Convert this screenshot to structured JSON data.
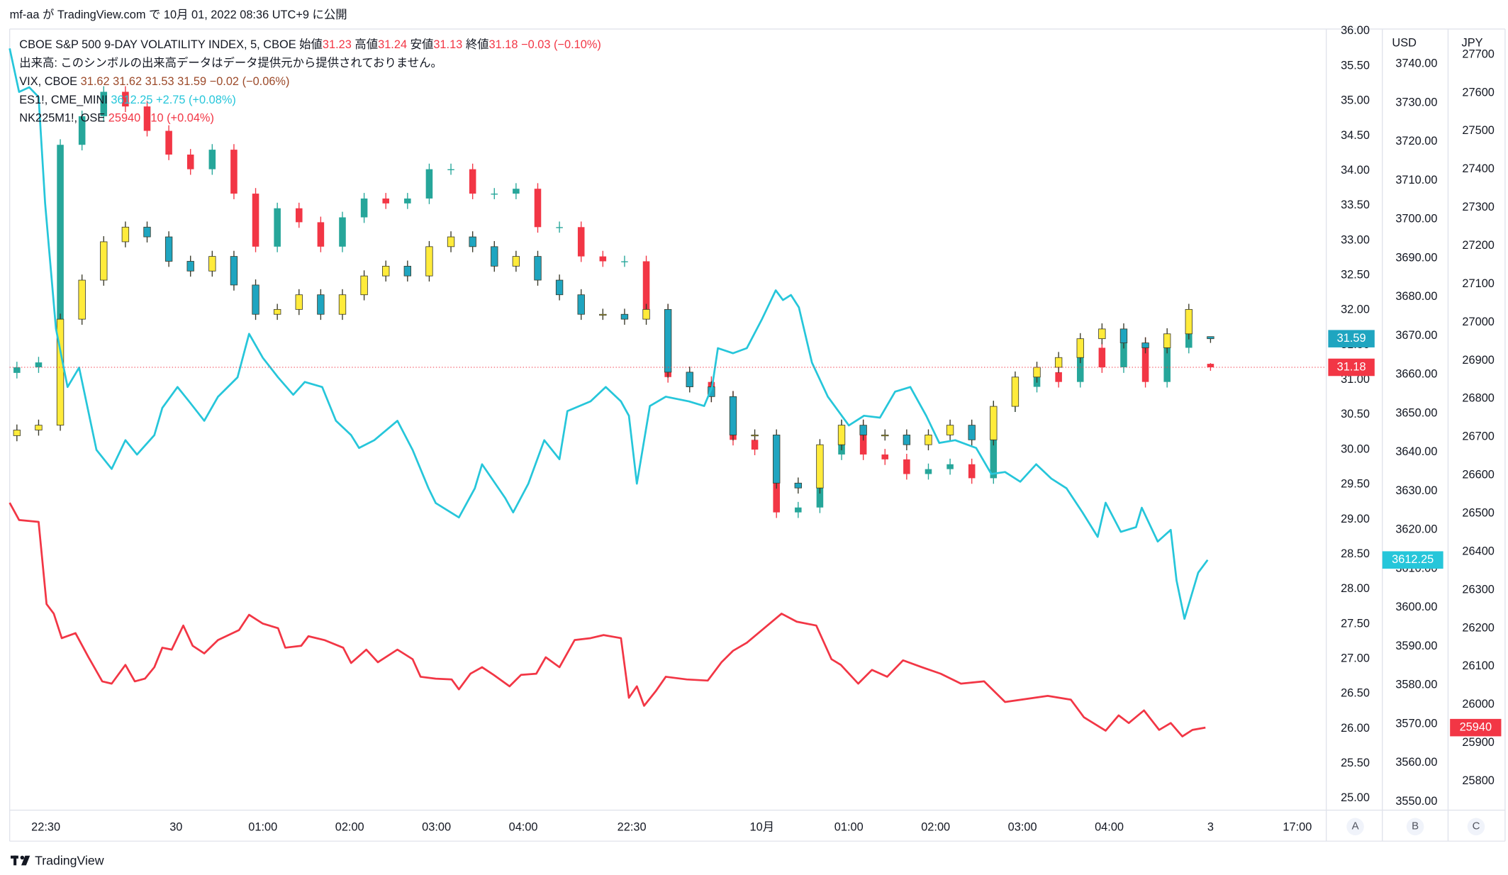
{
  "page_header": "mf-aa が TradingView.com で 10月 01, 2022 08:36 UTC+9 に公開",
  "footer": "TradingView",
  "chart_data": {
    "type": "candlestick",
    "volume_note": "出来高: このシンボルの出来高データはデータ提供元から提供されておりません。",
    "ohlc_labels": [
      "始値",
      "高値",
      "安値",
      "終値"
    ],
    "scale_buttons": [
      "A",
      "B",
      "C"
    ],
    "y2label": "USD",
    "y3label": "JPY",
    "grid": false,
    "xlim": [
      0,
      182
    ],
    "xticks": [
      {
        "value": 5,
        "label": "22:30"
      },
      {
        "value": 23,
        "label": "30"
      },
      {
        "value": 35,
        "label": "01:00"
      },
      {
        "value": 47,
        "label": "02:00"
      },
      {
        "value": 59,
        "label": "03:00"
      },
      {
        "value": 71,
        "label": "04:00"
      },
      {
        "value": 86,
        "label": "22:30"
      },
      {
        "value": 104,
        "label": "10月"
      },
      {
        "value": 116,
        "label": "01:00"
      },
      {
        "value": 128,
        "label": "02:00"
      },
      {
        "value": 140,
        "label": "03:00"
      },
      {
        "value": 152,
        "label": "04:00"
      },
      {
        "value": 166,
        "label": "3"
      },
      {
        "value": 178,
        "label": "17:00"
      }
    ],
    "ylim": [
      24.83,
      36.03
    ],
    "yticks": [
      {
        "value": 25,
        "label": "25.00"
      },
      {
        "value": 25.5,
        "label": "25.50"
      },
      {
        "value": 26,
        "label": "26.00"
      },
      {
        "value": 26.5,
        "label": "26.50"
      },
      {
        "value": 27,
        "label": "27.00"
      },
      {
        "value": 27.5,
        "label": "27.50"
      },
      {
        "value": 28,
        "label": "28.00"
      },
      {
        "value": 28.5,
        "label": "28.50"
      },
      {
        "value": 29,
        "label": "29.00"
      },
      {
        "value": 29.5,
        "label": "29.50"
      },
      {
        "value": 30,
        "label": "30.00"
      },
      {
        "value": 30.5,
        "label": "30.50"
      },
      {
        "value": 31,
        "label": "31.00"
      },
      {
        "value": 31.5,
        "label": "31.50"
      },
      {
        "value": 32,
        "label": "32.00"
      },
      {
        "value": 32.5,
        "label": "32.50"
      },
      {
        "value": 33,
        "label": "33.00"
      },
      {
        "value": 33.5,
        "label": "33.50"
      },
      {
        "value": 34,
        "label": "34.00"
      },
      {
        "value": 34.5,
        "label": "34.50"
      },
      {
        "value": 35,
        "label": "35.00"
      },
      {
        "value": 35.5,
        "label": "35.50"
      },
      {
        "value": 36,
        "label": "36.00"
      }
    ],
    "y2lim": [
      3547.8,
      3749
    ],
    "y2ticks": [
      {
        "value": 3550,
        "label": "3550.00"
      },
      {
        "value": 3560,
        "label": "3560.00"
      },
      {
        "value": 3570,
        "label": "3570.00"
      },
      {
        "value": 3580,
        "label": "3580.00"
      },
      {
        "value": 3590,
        "label": "3590.00"
      },
      {
        "value": 3600,
        "label": "3600.00"
      },
      {
        "value": 3610,
        "label": "3610.00"
      },
      {
        "value": 3620,
        "label": "3620.00"
      },
      {
        "value": 3630,
        "label": "3630.00"
      },
      {
        "value": 3640,
        "label": "3640.00"
      },
      {
        "value": 3650,
        "label": "3650.00"
      },
      {
        "value": 3660,
        "label": "3660.00"
      },
      {
        "value": 3670,
        "label": "3670.00"
      },
      {
        "value": 3680,
        "label": "3680.00"
      },
      {
        "value": 3690,
        "label": "3690.00"
      },
      {
        "value": 3700,
        "label": "3700.00"
      },
      {
        "value": 3710,
        "label": "3710.00"
      },
      {
        "value": 3720,
        "label": "3720.00"
      },
      {
        "value": 3730,
        "label": "3730.00"
      },
      {
        "value": 3740,
        "label": "3740.00"
      }
    ],
    "y3lim": [
      25724,
      27767
    ],
    "y3ticks": [
      25800,
      25900,
      26000,
      26100,
      26200,
      26300,
      26400,
      26500,
      26600,
      26700,
      26800,
      26900,
      27000,
      27100,
      27200,
      27300,
      27400,
      27500,
      27600,
      27700
    ],
    "x": [
      1,
      4,
      7,
      10,
      13,
      16,
      19,
      22,
      25,
      28,
      31,
      34,
      37,
      40,
      43,
      46,
      49,
      52,
      55,
      58,
      61,
      64,
      67,
      70,
      73,
      76,
      79,
      82,
      85,
      88,
      91,
      94,
      97,
      100,
      103,
      106,
      109,
      112,
      115,
      118,
      121,
      124,
      127,
      130,
      133,
      136,
      139,
      142,
      145,
      148,
      151,
      154,
      157,
      160,
      163,
      166
    ],
    "series": [
      {
        "name": "CBOE S&P 500 9-DAY VOLATILITY INDEX, 5, CBOE",
        "type": "candlestick",
        "up_color": "#26a69a",
        "down_color": "#f23645",
        "legend_color": "#f23645",
        "change": "−0.03 (−0.10%)",
        "open": [
          31.1,
          31.18,
          31.25,
          34.37,
          34.78,
          35.13,
          34.92,
          34.57,
          34.23,
          34.02,
          34.3,
          33.67,
          32.91,
          33.46,
          33.26,
          32.91,
          33.33,
          33.6,
          33.53,
          33.6,
          34.02,
          34.02,
          33.67,
          33.67,
          33.74,
          33.19,
          33.19,
          32.77,
          32.7,
          32.7,
          32.01,
          31.04,
          30.97,
          30.76,
          30.14,
          30.0,
          29.1,
          29.17,
          29.93,
          30.35,
          29.93,
          29.86,
          29.65,
          29.72,
          29.79,
          29.59,
          30.62,
          30.9,
          31.11,
          30.97,
          31.46,
          31.18,
          31.53,
          30.97,
          31.46,
          31.23
        ],
        "high": [
          31.26,
          31.33,
          34.45,
          34.86,
          35.21,
          35.21,
          35.0,
          34.65,
          34.31,
          34.38,
          34.38,
          33.75,
          33.54,
          33.54,
          33.34,
          33.41,
          33.68,
          33.68,
          33.68,
          34.1,
          34.1,
          34.1,
          33.75,
          33.82,
          33.82,
          33.27,
          33.27,
          32.85,
          32.78,
          32.78,
          32.09,
          31.12,
          31.05,
          30.84,
          30.22,
          30.08,
          29.25,
          30.01,
          30.43,
          30.43,
          30.01,
          29.94,
          29.8,
          29.87,
          29.87,
          30.7,
          30.98,
          31.19,
          31.19,
          31.54,
          31.54,
          31.61,
          31.61,
          31.54,
          31.88,
          31.24
        ],
        "low": [
          31.02,
          31.1,
          31.17,
          34.29,
          34.7,
          34.84,
          34.49,
          34.15,
          33.94,
          33.94,
          33.59,
          32.83,
          32.83,
          33.18,
          32.83,
          32.83,
          33.25,
          33.45,
          33.45,
          33.52,
          33.94,
          33.59,
          33.59,
          33.59,
          33.11,
          33.11,
          32.69,
          32.62,
          32.62,
          31.93,
          30.96,
          30.89,
          30.68,
          30.06,
          29.92,
          29.02,
          29.02,
          29.09,
          29.85,
          29.85,
          29.78,
          29.57,
          29.57,
          29.64,
          29.51,
          29.51,
          30.54,
          30.82,
          30.89,
          30.89,
          31.1,
          31.1,
          30.89,
          30.89,
          31.38,
          31.13
        ],
        "close": [
          31.18,
          31.25,
          34.37,
          34.78,
          35.13,
          34.92,
          34.57,
          34.23,
          34.02,
          34.3,
          33.67,
          32.91,
          33.46,
          33.26,
          32.91,
          33.33,
          33.6,
          33.53,
          33.6,
          34.02,
          34.02,
          33.67,
          33.67,
          33.74,
          33.19,
          33.19,
          32.77,
          32.7,
          32.7,
          32.01,
          31.04,
          30.97,
          30.76,
          30.14,
          30.0,
          29.1,
          29.17,
          29.93,
          30.35,
          29.93,
          29.86,
          29.65,
          29.72,
          29.79,
          29.59,
          30.62,
          30.9,
          31.11,
          30.97,
          31.46,
          31.18,
          31.53,
          30.97,
          31.46,
          31.8,
          31.18
        ]
      },
      {
        "name": "VIX, CBOE",
        "type": "candlestick",
        "up_color": "#ffeb3b",
        "down_color": "#1fa5c0",
        "border_color": "#3a3a2a",
        "legend_color": "#9c4a2a",
        "change": "−0.02 (−0.06%)",
        "open": [
          30.2,
          30.28,
          30.35,
          31.87,
          32.43,
          32.98,
          33.19,
          33.05,
          32.7,
          32.56,
          32.77,
          32.36,
          31.94,
          32.01,
          32.22,
          31.94,
          32.22,
          32.49,
          32.63,
          32.49,
          32.91,
          33.05,
          32.91,
          32.63,
          32.77,
          32.43,
          32.22,
          31.94,
          31.94,
          31.87,
          32.01,
          31.11,
          30.9,
          30.76,
          30.21,
          30.21,
          29.52,
          29.45,
          30.07,
          30.35,
          30.21,
          30.21,
          30.07,
          30.21,
          30.35,
          30.14,
          30.62,
          31.04,
          31.18,
          31.32,
          31.59,
          31.73,
          31.53,
          31.46,
          31.66,
          31.62
        ],
        "high": [
          30.36,
          30.43,
          31.95,
          32.51,
          33.06,
          33.27,
          33.27,
          33.13,
          32.78,
          32.85,
          32.85,
          32.44,
          32.09,
          32.3,
          32.3,
          32.3,
          32.57,
          32.71,
          32.71,
          32.99,
          33.13,
          33.13,
          32.99,
          32.85,
          32.85,
          32.51,
          32.3,
          32.02,
          32.02,
          32.09,
          32.09,
          31.19,
          30.98,
          30.84,
          30.29,
          30.29,
          29.6,
          30.15,
          30.43,
          30.43,
          30.29,
          30.29,
          30.29,
          30.43,
          30.43,
          30.7,
          31.12,
          31.26,
          31.4,
          31.67,
          31.81,
          31.81,
          31.61,
          31.74,
          32.09,
          31.62
        ],
        "low": [
          30.12,
          30.2,
          30.27,
          31.79,
          32.35,
          32.9,
          32.97,
          32.62,
          32.48,
          32.48,
          32.28,
          31.86,
          31.86,
          31.93,
          31.86,
          31.86,
          32.14,
          32.41,
          32.41,
          32.41,
          32.83,
          32.83,
          32.55,
          32.55,
          32.35,
          32.14,
          31.86,
          31.86,
          31.79,
          31.79,
          31.03,
          30.82,
          30.68,
          30.13,
          30.13,
          29.44,
          29.37,
          29.37,
          29.99,
          30.13,
          30.13,
          29.99,
          29.99,
          30.13,
          30.06,
          30.06,
          30.54,
          30.96,
          31.1,
          31.24,
          31.51,
          31.45,
          31.38,
          31.38,
          31.58,
          31.53
        ],
        "close": [
          30.28,
          30.35,
          31.87,
          32.43,
          32.98,
          33.19,
          33.05,
          32.7,
          32.56,
          32.77,
          32.36,
          31.94,
          32.01,
          32.22,
          31.94,
          32.22,
          32.49,
          32.63,
          32.49,
          32.91,
          33.05,
          32.91,
          32.63,
          32.77,
          32.43,
          32.22,
          31.94,
          31.94,
          31.87,
          32.01,
          31.11,
          30.9,
          30.76,
          30.21,
          30.21,
          29.52,
          29.45,
          30.07,
          30.35,
          30.21,
          30.21,
          30.07,
          30.21,
          30.35,
          30.14,
          30.62,
          31.04,
          31.18,
          31.32,
          31.59,
          31.73,
          31.53,
          31.46,
          31.66,
          32.01,
          31.59
        ]
      },
      {
        "name": "ES1!, CME_MINI",
        "type": "line",
        "axis": "y2",
        "color": "#26c6da",
        "legend_color": "#26c6da",
        "change": "+2.75 (+0.08%)",
        "x": [
          0,
          1.3,
          2.7,
          4,
          4.9,
          6.4,
          8,
          9.6,
          12,
          14.1,
          16,
          17.6,
          20,
          21.1,
          23.2,
          24.8,
          26.9,
          28.8,
          31.5,
          33.1,
          35,
          37.1,
          39.2,
          40.8,
          43.2,
          45.1,
          47.2,
          48.3,
          50.4,
          53.6,
          55.7,
          57.9,
          58.9,
          62.1,
          64.3,
          65.3,
          68.5,
          69.6,
          71.7,
          73.9,
          76,
          77.1,
          80.3,
          82.4,
          84.5,
          85.6,
          86.7,
          88.5,
          90.7,
          93.9,
          96,
          97.1,
          97.9,
          100,
          101.9,
          104,
          105.9,
          106.9,
          108,
          109.1,
          110.9,
          113.1,
          116,
          118.1,
          120.3,
          122.4,
          124.5,
          126.7,
          128.5,
          130.7,
          133.6,
          135.7,
          137.6,
          139.7,
          141.9,
          144,
          146.1,
          148.3,
          150.4,
          151.5,
          153.6,
          155.7,
          156.5,
          158.7,
          160.5,
          161.3,
          162.4,
          164.3,
          165.6
        ],
        "values": [
          3744,
          3732.8,
          3734,
          3731.5,
          3704.1,
          3671.8,
          3656.8,
          3661.8,
          3640.6,
          3635.7,
          3643.1,
          3639.4,
          3644.4,
          3651.4,
          3656.8,
          3653.1,
          3648.1,
          3654.3,
          3659.3,
          3670.5,
          3664.3,
          3659.3,
          3654.8,
          3658.1,
          3656.8,
          3648.1,
          3644.4,
          3641.1,
          3643.1,
          3648.1,
          3640.6,
          3630.7,
          3626.9,
          3623.2,
          3630.7,
          3636.9,
          3628.2,
          3624.5,
          3631.9,
          3643.1,
          3638.2,
          3650.6,
          3653.1,
          3656.8,
          3653.1,
          3649.4,
          3631.9,
          3651.9,
          3654.3,
          3653.1,
          3651.9,
          3656.8,
          3666.8,
          3665.5,
          3666.8,
          3674.3,
          3681.7,
          3679.2,
          3680.5,
          3677.3,
          3663.1,
          3654.3,
          3646.9,
          3649.4,
          3648.9,
          3655.6,
          3656.8,
          3649.4,
          3642.4,
          3643.1,
          3641.1,
          3634.4,
          3634.9,
          3632.4,
          3636.9,
          3633.2,
          3630.7,
          3624.5,
          3618.2,
          3627,
          3619.5,
          3620.7,
          3625.7,
          3617,
          3620,
          3607,
          3597.1,
          3609,
          3612.25
        ]
      },
      {
        "name": "NK225M1!, OSE",
        "type": "line",
        "axis": "y3",
        "color": "#f23645",
        "legend_color": "#f23645",
        "change": "+10 (+0.04%)",
        "x": [
          0,
          1.3,
          4,
          5.1,
          6.1,
          7.2,
          9.1,
          10.9,
          12.8,
          14.1,
          16,
          17.3,
          18.7,
          20,
          21.1,
          22.4,
          24,
          25.3,
          26.9,
          28.8,
          31.7,
          33.1,
          35,
          37.1,
          38.1,
          40.3,
          41.3,
          43.5,
          46.1,
          47.2,
          49.3,
          50.9,
          53.6,
          55.7,
          56.8,
          58.9,
          61.1,
          62.1,
          63.7,
          65.3,
          66.9,
          69.1,
          70.7,
          72.8,
          74.1,
          76,
          78.1,
          80.3,
          82.1,
          84.5,
          85.6,
          86.7,
          87.7,
          89.3,
          90.7,
          93.6,
          96.5,
          98.4,
          100,
          101.9,
          104.3,
          106.7,
          108.8,
          111.5,
          113.6,
          114.9,
          117.3,
          119.2,
          121.3,
          123.5,
          126.1,
          128.7,
          131.5,
          134.7,
          137.6,
          143.5,
          146.7,
          148.5,
          151.5,
          153.3,
          154.7,
          156.8,
          158.9,
          160.5,
          162.1,
          163.5,
          165.3
        ],
        "values": [
          26528,
          26483,
          26478,
          26263,
          26238,
          26174,
          26187,
          26124,
          26061,
          26055,
          26104,
          26061,
          26068,
          26098,
          26149,
          26144,
          26207,
          26154,
          26134,
          26169,
          26195,
          26235,
          26212,
          26200,
          26149,
          26154,
          26179,
          26169,
          26149,
          26109,
          26144,
          26111,
          26144,
          26119,
          26073,
          26068,
          26066,
          26040,
          26081,
          26098,
          26078,
          26048,
          26078,
          26081,
          26124,
          26098,
          26169,
          26174,
          26182,
          26174,
          26018,
          26048,
          25997,
          26035,
          26073,
          26066,
          26063,
          26111,
          26141,
          26162,
          26200,
          26238,
          26217,
          26207,
          26119,
          26104,
          26055,
          26091,
          26073,
          26116,
          26098,
          26081,
          26055,
          26061,
          26007,
          26023,
          26013,
          25967,
          25932,
          25972,
          25952,
          25985,
          25934,
          25952,
          25917,
          25934,
          25940
        ]
      }
    ]
  }
}
